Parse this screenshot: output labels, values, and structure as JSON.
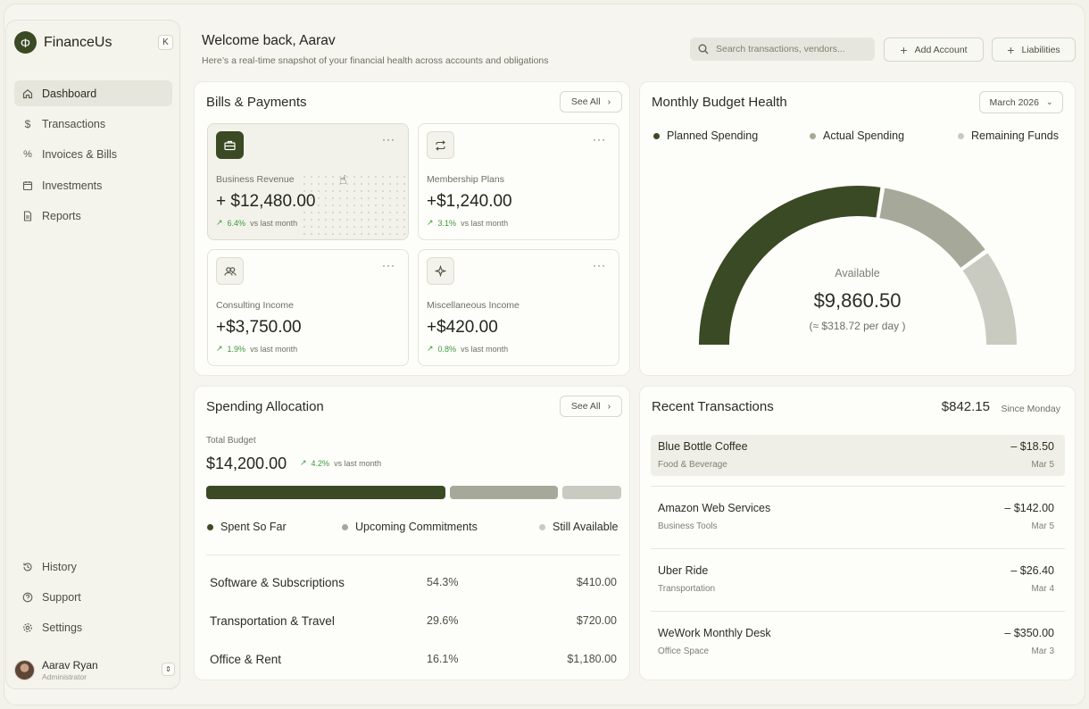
{
  "app": {
    "name": "FinanceUs",
    "logo_glyph": "Φ",
    "collapse_glyph": "K"
  },
  "sidebar": {
    "items": [
      {
        "label": "Dashboard",
        "icon": "home-icon",
        "active": true
      },
      {
        "label": "Transactions",
        "icon": "dollar-icon"
      },
      {
        "label": "Invoices & Bills",
        "icon": "percent-icon"
      },
      {
        "label": "Investments",
        "icon": "calendar-icon"
      },
      {
        "label": "Reports",
        "icon": "document-icon"
      }
    ],
    "bottom_items": [
      {
        "label": "History",
        "icon": "history-icon"
      },
      {
        "label": "Support",
        "icon": "help-icon"
      },
      {
        "label": "Settings",
        "icon": "gear-icon"
      }
    ],
    "user": {
      "name": "Aarav Ryan",
      "role": "Administrator"
    }
  },
  "header": {
    "welcome": "Welcome back, Aarav",
    "subtitle": "Here’s a real-time snapshot of your financial health across accounts and obligations",
    "search_placeholder": "Search transactions, vendors...",
    "add_account": "Add Account",
    "liabilities": "Liabilities"
  },
  "bills": {
    "title": "Bills & Payments",
    "see_all": "See All",
    "tiles": [
      {
        "icon": "briefcase-icon",
        "label": "Business Revenue",
        "value": "+ $12,480.00",
        "change": "6.4%",
        "note": "vs last month"
      },
      {
        "icon": "repeat-icon",
        "label": "Membership Plans",
        "value": "+$1,240.00",
        "change": "3.1%",
        "note": "vs last month"
      },
      {
        "icon": "users-icon",
        "label": "Consulting Income",
        "value": "+$3,750.00",
        "change": "1.9%",
        "note": "vs last month"
      },
      {
        "icon": "sparkle-icon",
        "label": "Miscellaneous Income",
        "value": "+$420.00",
        "change": "0.8%",
        "note": "vs last month"
      }
    ]
  },
  "budget": {
    "title": "Monthly Budget Health",
    "month": "March 2026",
    "legend": [
      {
        "label": "Planned Spending",
        "color": "#3a4a24"
      },
      {
        "label": "Actual Spending",
        "color": "#a6a899"
      },
      {
        "label": "Remaining Funds",
        "color": "#c9cac0"
      }
    ],
    "gauge_fractions": [
      0.55,
      0.25,
      0.2
    ],
    "available_label": "Available",
    "available_value": "$9,860.50",
    "per_day": "(≈ $318.72 per day )"
  },
  "allocation": {
    "title": "Spending Allocation",
    "see_all": "See All",
    "total_label": "Total Budget",
    "total_value": "$14,200.00",
    "change": "4.2%",
    "change_note": "vs last month",
    "bar_fractions": [
      0.59,
      0.265,
      0.145
    ],
    "legend": [
      {
        "label": "Spent So Far",
        "color": "#3a4a24"
      },
      {
        "label": "Upcoming Commitments",
        "color": "#a6a899"
      },
      {
        "label": "Still Available",
        "color": "#c9cac0"
      }
    ],
    "rows": [
      {
        "name": "Software & Subscriptions",
        "pct": "54.3%",
        "amount": "$410.00"
      },
      {
        "name": "Transportation & Travel",
        "pct": "29.6%",
        "amount": "$720.00"
      },
      {
        "name": "Office & Rent",
        "pct": "16.1%",
        "amount": "$1,180.00"
      }
    ]
  },
  "transactions": {
    "title": "Recent Transactions",
    "total": "$842.15",
    "since": "Since Monday",
    "items": [
      {
        "name": "Blue Bottle Coffee",
        "category": "Food & Beverage",
        "amount": "– $18.50",
        "date": "Mar 5"
      },
      {
        "name": "Amazon Web Services",
        "category": "Business Tools",
        "amount": "– $142.00",
        "date": "Mar 5"
      },
      {
        "name": "Uber Ride",
        "category": "Transportation",
        "amount": "– $26.40",
        "date": "Mar 4"
      },
      {
        "name": "WeWork Monthly Desk",
        "category": "Office Space",
        "amount": "– $350.00",
        "date": "Mar 3"
      }
    ]
  },
  "colors": {
    "accent": "#3a4a24",
    "mid": "#a6a899",
    "light": "#c9cac0",
    "trend": "#3c9a3a"
  }
}
